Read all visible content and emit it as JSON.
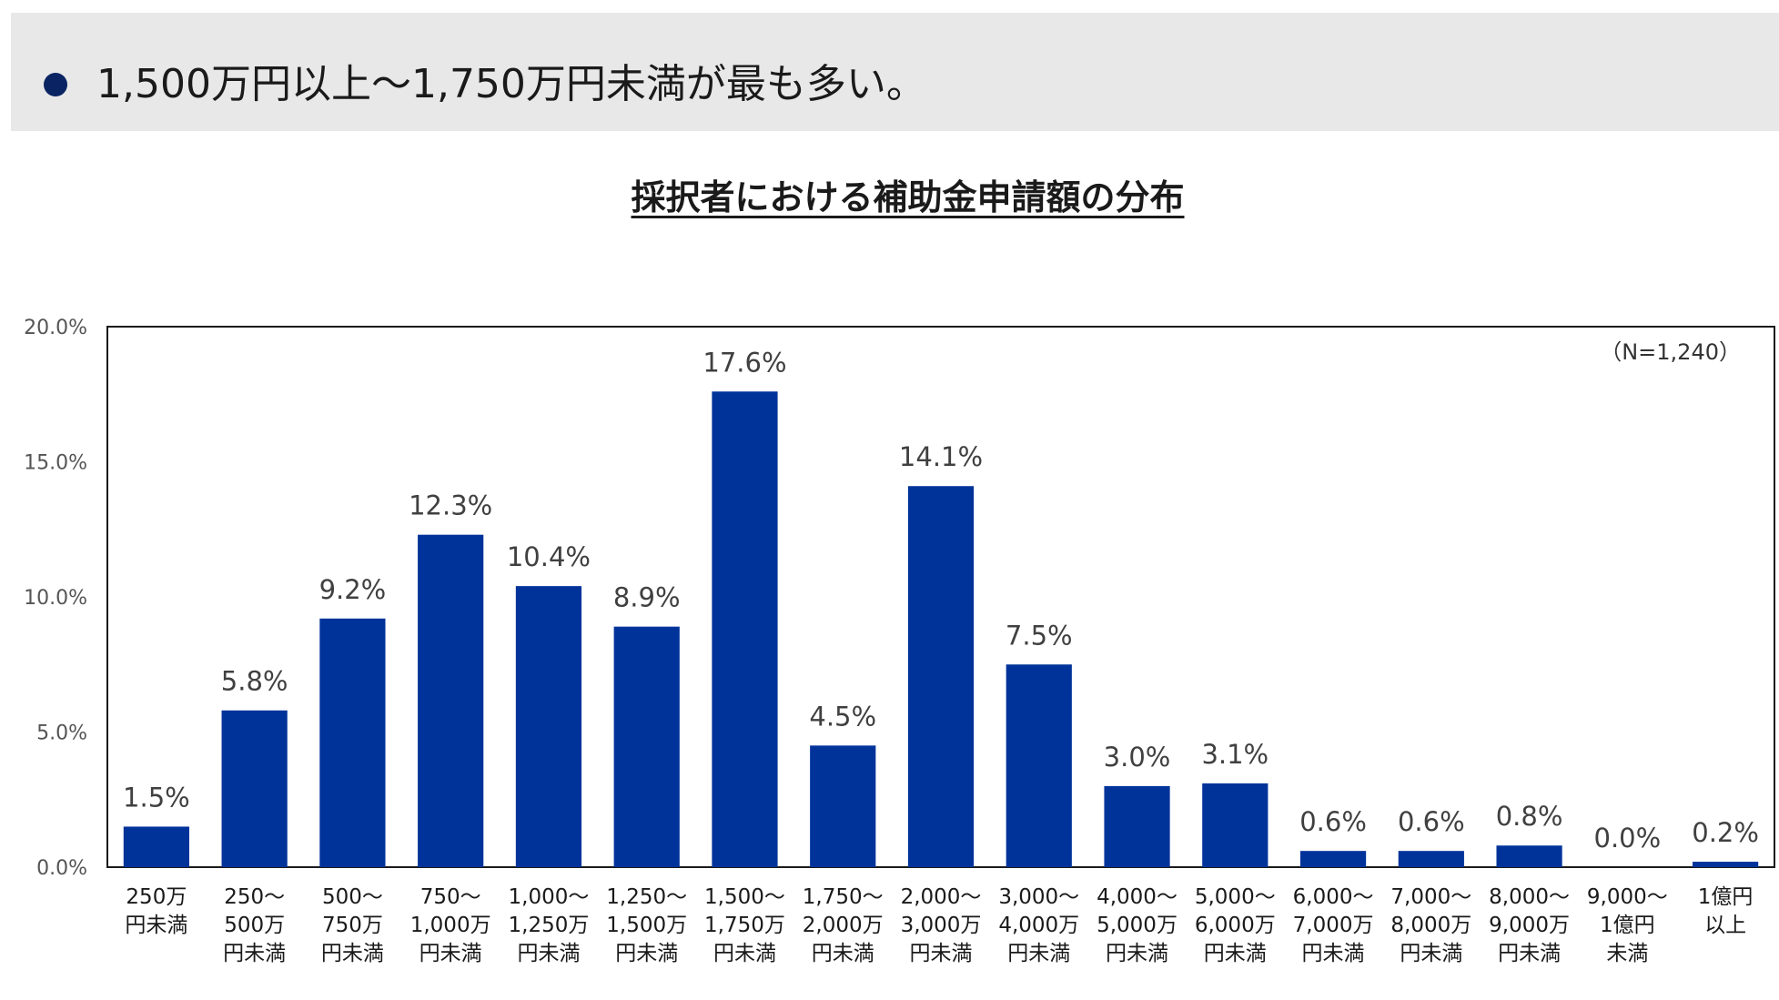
{
  "banner": {
    "text": "1,500万円以上〜1,750万円未満が最も多い。",
    "dot_color": "#0a2463"
  },
  "chart_data": {
    "type": "bar",
    "title": "採択者における補助金申請額の分布",
    "annotation": "（N=1,240）",
    "bar_color": "#00339a",
    "ylim": [
      0,
      20
    ],
    "yticks": [
      "0.0%",
      "5.0%",
      "10.0%",
      "15.0%",
      "20.0%"
    ],
    "grid": false,
    "legend": "none",
    "categories": [
      [
        "250万",
        "円未満"
      ],
      [
        "250〜",
        "500万",
        "円未満"
      ],
      [
        "500〜",
        "750万",
        "円未満"
      ],
      [
        "750〜",
        "1,000万",
        "円未満"
      ],
      [
        "1,000〜",
        "1,250万",
        "円未満"
      ],
      [
        "1,250〜",
        "1,500万",
        "円未満"
      ],
      [
        "1,500〜",
        "1,750万",
        "円未満"
      ],
      [
        "1,750〜",
        "2,000万",
        "円未満"
      ],
      [
        "2,000〜",
        "3,000万",
        "円未満"
      ],
      [
        "3,000〜",
        "4,000万",
        "円未満"
      ],
      [
        "4,000〜",
        "5,000万",
        "円未満"
      ],
      [
        "5,000〜",
        "6,000万",
        "円未満"
      ],
      [
        "6,000〜",
        "7,000万",
        "円未満"
      ],
      [
        "7,000〜",
        "8,000万",
        "円未満"
      ],
      [
        "8,000〜",
        "9,000万",
        "円未満"
      ],
      [
        "9,000〜",
        "1億円",
        "未満"
      ],
      [
        "1億円",
        "以上"
      ]
    ],
    "values": [
      1.5,
      5.8,
      9.2,
      12.3,
      10.4,
      8.9,
      17.6,
      4.5,
      14.1,
      7.5,
      3.0,
      3.1,
      0.6,
      0.6,
      0.8,
      0.0,
      0.2
    ],
    "value_labels": [
      "1.5%",
      "5.8%",
      "9.2%",
      "12.3%",
      "10.4%",
      "8.9%",
      "17.6%",
      "4.5%",
      "14.1%",
      "7.5%",
      "3.0%",
      "3.1%",
      "0.6%",
      "0.6%",
      "0.8%",
      "0.0%",
      "0.2%"
    ]
  }
}
